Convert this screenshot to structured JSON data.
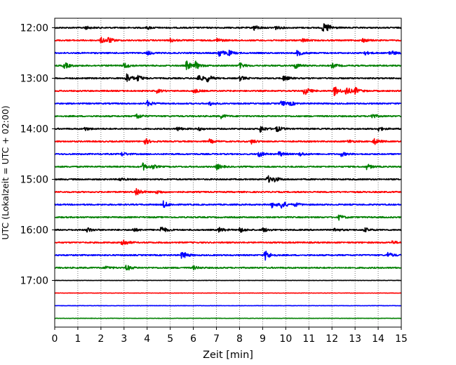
{
  "chart_data": {
    "type": "line",
    "title": "",
    "xlabel": "Zeit  [min]",
    "ylabel": "UTC (Lokalzeit = UTC + 02:00)",
    "xlim": [
      0,
      15
    ],
    "x_ticks": [
      "0",
      "1",
      "2",
      "3",
      "4",
      "5",
      "6",
      "7",
      "8",
      "9",
      "10",
      "11",
      "12",
      "13",
      "14",
      "15"
    ],
    "y_ticks": [
      "12:00",
      "13:00",
      "14:00",
      "15:00",
      "16:00",
      "17:00"
    ],
    "grid": {
      "vertical_dotted": true,
      "horizontal": false
    },
    "trace_colors": [
      "#000000",
      "#ff0000",
      "#0000ff",
      "#008000"
    ],
    "traces": [
      {
        "start": "12:00",
        "color": "#000000",
        "events": [
          [
            1.3,
            0.35
          ],
          [
            4.0,
            0.3
          ],
          [
            8.6,
            0.6
          ],
          [
            9.5,
            0.45
          ],
          [
            11.6,
            0.9
          ],
          [
            11.8,
            0.5
          ]
        ]
      },
      {
        "start": "12:15",
        "color": "#ff0000",
        "events": [
          [
            2.0,
            0.6
          ],
          [
            2.3,
            0.55
          ],
          [
            5.0,
            0.35
          ],
          [
            7.0,
            0.5
          ],
          [
            10.7,
            0.4
          ],
          [
            13.3,
            0.45
          ]
        ]
      },
      {
        "start": "12:30",
        "color": "#0000ff",
        "events": [
          [
            4.0,
            0.4
          ],
          [
            7.1,
            0.8
          ],
          [
            7.5,
            0.55
          ],
          [
            10.5,
            0.6
          ],
          [
            13.4,
            0.4
          ],
          [
            14.5,
            0.6
          ]
        ]
      },
      {
        "start": "12:45",
        "color": "#008000",
        "events": [
          [
            0.4,
            0.7
          ],
          [
            3.0,
            0.6
          ],
          [
            5.7,
            1.0
          ],
          [
            6.1,
            0.7
          ],
          [
            8.0,
            0.55
          ],
          [
            10.4,
            0.6
          ],
          [
            12.0,
            0.5
          ]
        ]
      },
      {
        "start": "13:00",
        "color": "#000000",
        "events": [
          [
            3.1,
            1.1
          ],
          [
            3.6,
            0.6
          ],
          [
            6.2,
            0.8
          ],
          [
            6.6,
            0.7
          ],
          [
            8.0,
            0.5
          ],
          [
            9.9,
            0.6
          ]
        ]
      },
      {
        "start": "13:15",
        "color": "#ff0000",
        "events": [
          [
            4.4,
            0.4
          ],
          [
            6.0,
            0.5
          ],
          [
            10.8,
            0.9
          ],
          [
            12.1,
            1.0
          ],
          [
            12.6,
            0.9
          ],
          [
            13.0,
            0.6
          ]
        ]
      },
      {
        "start": "13:30",
        "color": "#0000ff",
        "events": [
          [
            4.0,
            0.6
          ],
          [
            6.7,
            0.4
          ],
          [
            9.8,
            0.6
          ],
          [
            10.2,
            0.35
          ]
        ]
      },
      {
        "start": "13:45",
        "color": "#008000",
        "events": [
          [
            3.5,
            0.7
          ],
          [
            7.2,
            0.4
          ],
          [
            13.7,
            0.55
          ]
        ]
      },
      {
        "start": "14:00",
        "color": "#000000",
        "events": [
          [
            1.3,
            0.35
          ],
          [
            5.3,
            0.4
          ],
          [
            6.2,
            0.35
          ],
          [
            8.9,
            0.7
          ],
          [
            9.6,
            0.6
          ],
          [
            14.0,
            0.45
          ]
        ]
      },
      {
        "start": "14:15",
        "color": "#ff0000",
        "events": [
          [
            3.9,
            0.6
          ],
          [
            6.7,
            0.4
          ],
          [
            8.5,
            0.45
          ],
          [
            12.7,
            0.35
          ],
          [
            13.8,
            0.7
          ]
        ]
      },
      {
        "start": "14:30",
        "color": "#0000ff",
        "events": [
          [
            2.9,
            0.4
          ],
          [
            8.8,
            0.7
          ],
          [
            9.7,
            0.55
          ],
          [
            10.6,
            0.4
          ],
          [
            12.4,
            0.45
          ]
        ]
      },
      {
        "start": "14:45",
        "color": "#008000",
        "events": [
          [
            3.8,
            0.8
          ],
          [
            4.2,
            0.4
          ],
          [
            7.0,
            0.6
          ],
          [
            13.5,
            0.55
          ]
        ]
      },
      {
        "start": "15:00",
        "color": "#000000",
        "events": [
          [
            2.8,
            0.35
          ],
          [
            9.2,
            0.8
          ],
          [
            9.5,
            0.45
          ]
        ]
      },
      {
        "start": "15:15",
        "color": "#ff0000",
        "events": [
          [
            3.5,
            1.0
          ],
          [
            4.4,
            0.4
          ]
        ]
      },
      {
        "start": "15:30",
        "color": "#0000ff",
        "events": [
          [
            4.7,
            0.7
          ],
          [
            9.4,
            0.6
          ],
          [
            9.8,
            0.9
          ],
          [
            10.4,
            0.4
          ]
        ]
      },
      {
        "start": "15:45",
        "color": "#008000",
        "events": [
          [
            12.3,
            0.5
          ]
        ]
      },
      {
        "start": "16:00",
        "color": "#000000",
        "events": [
          [
            1.4,
            0.5
          ],
          [
            3.4,
            0.4
          ],
          [
            4.6,
            0.8
          ],
          [
            7.1,
            0.5
          ],
          [
            8.0,
            0.55
          ],
          [
            9.0,
            0.5
          ],
          [
            12.1,
            0.4
          ],
          [
            13.4,
            0.45
          ]
        ]
      },
      {
        "start": "16:15",
        "color": "#ff0000",
        "events": [
          [
            2.9,
            0.9
          ],
          [
            14.6,
            0.3
          ]
        ]
      },
      {
        "start": "16:30",
        "color": "#0000ff",
        "events": [
          [
            5.5,
            0.9
          ],
          [
            9.1,
            1.1
          ],
          [
            14.4,
            0.6
          ]
        ]
      },
      {
        "start": "16:45",
        "color": "#008000",
        "events": [
          [
            2.2,
            0.4
          ],
          [
            3.1,
            0.6
          ],
          [
            6.0,
            0.35
          ]
        ]
      },
      {
        "start": "17:00",
        "color": "#000000",
        "events": []
      },
      {
        "start": "17:15",
        "color": "#ff0000",
        "events": []
      },
      {
        "start": "17:30",
        "color": "#0000ff",
        "events": []
      },
      {
        "start": "17:45",
        "color": "#008000",
        "events": []
      }
    ]
  }
}
